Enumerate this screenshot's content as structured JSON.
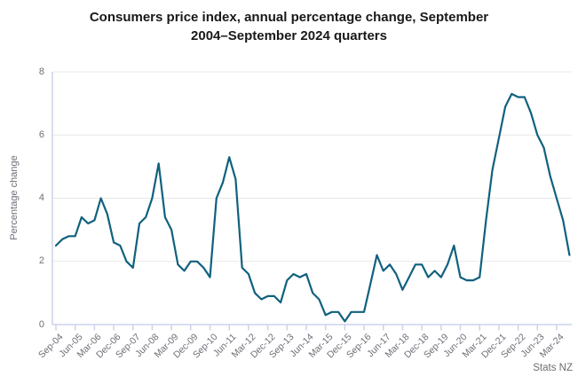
{
  "header": {
    "title_line1": "Consumers price index, annual percentage change, September",
    "title_line2": "2004–September 2024 quarters"
  },
  "chart_data": {
    "type": "line",
    "title": "Consumers price index, annual percentage change, September 2004–September 2024 quarters",
    "xlabel": "",
    "ylabel": "Percentage change",
    "source_note": "Stats NZ",
    "ylim": [
      0,
      8
    ],
    "yticks": [
      0,
      2,
      4,
      6,
      8
    ],
    "grid": "horizontal",
    "legend": "none",
    "x_tick_label_every": 3,
    "x_tick_labels": [
      "Sep-04",
      "Jun-05",
      "Mar-06",
      "Dec-06",
      "Sep-07",
      "Jun-08",
      "Mar-09",
      "Dec-09",
      "Sep-10",
      "Jun-11",
      "Mar-12",
      "Dec-12",
      "Sep-13",
      "Jun-14",
      "Mar-15",
      "Dec-15",
      "Sep-16",
      "Jun-17",
      "Mar-18",
      "Dec-18",
      "Sep-19",
      "Jun-20",
      "Mar-21",
      "Dec-21",
      "Sep-22",
      "Jun-23",
      "Mar-24"
    ],
    "categories": [
      "Sep-04",
      "Dec-04",
      "Mar-05",
      "Jun-05",
      "Sep-05",
      "Dec-05",
      "Mar-06",
      "Jun-06",
      "Sep-06",
      "Dec-06",
      "Mar-07",
      "Jun-07",
      "Sep-07",
      "Dec-07",
      "Mar-08",
      "Jun-08",
      "Sep-08",
      "Dec-08",
      "Mar-09",
      "Jun-09",
      "Sep-09",
      "Dec-09",
      "Mar-10",
      "Jun-10",
      "Sep-10",
      "Dec-10",
      "Mar-11",
      "Jun-11",
      "Sep-11",
      "Dec-11",
      "Mar-12",
      "Jun-12",
      "Sep-12",
      "Dec-12",
      "Mar-13",
      "Jun-13",
      "Sep-13",
      "Dec-13",
      "Mar-14",
      "Jun-14",
      "Sep-14",
      "Dec-14",
      "Mar-15",
      "Jun-15",
      "Sep-15",
      "Dec-15",
      "Mar-16",
      "Jun-16",
      "Sep-16",
      "Dec-16",
      "Mar-17",
      "Jun-17",
      "Sep-17",
      "Dec-17",
      "Mar-18",
      "Jun-18",
      "Sep-18",
      "Dec-18",
      "Mar-19",
      "Jun-19",
      "Sep-19",
      "Dec-19",
      "Mar-20",
      "Jun-20",
      "Sep-20",
      "Dec-20",
      "Mar-21",
      "Jun-21",
      "Sep-21",
      "Dec-21",
      "Mar-22",
      "Jun-22",
      "Sep-22",
      "Dec-22",
      "Mar-23",
      "Jun-23",
      "Sep-23",
      "Dec-23",
      "Mar-24",
      "Jun-24",
      "Sep-24"
    ],
    "series": [
      {
        "name": "CPI annual percentage change",
        "values": [
          2.5,
          2.7,
          2.8,
          2.8,
          3.4,
          3.2,
          3.3,
          4.0,
          3.5,
          2.6,
          2.5,
          2.0,
          1.8,
          3.2,
          3.4,
          4.0,
          5.1,
          3.4,
          3.0,
          1.9,
          1.7,
          2.0,
          2.0,
          1.8,
          1.5,
          4.0,
          4.5,
          5.3,
          4.6,
          1.8,
          1.6,
          1.0,
          0.8,
          0.9,
          0.9,
          0.7,
          1.4,
          1.6,
          1.5,
          1.6,
          1.0,
          0.8,
          0.3,
          0.4,
          0.4,
          0.1,
          0.4,
          0.4,
          0.4,
          1.3,
          2.2,
          1.7,
          1.9,
          1.6,
          1.1,
          1.5,
          1.9,
          1.9,
          1.5,
          1.7,
          1.5,
          1.9,
          2.5,
          1.5,
          1.4,
          1.4,
          1.5,
          3.3,
          4.9,
          5.9,
          6.9,
          7.3,
          7.2,
          7.2,
          6.7,
          6.0,
          5.6,
          4.7,
          4.0,
          3.3,
          2.2
        ]
      }
    ],
    "colors": {
      "line": "#10617e",
      "axis": "#ccd3ea",
      "grid": "#e8e8e8",
      "tick_text": "#6e6e78",
      "title_text": "#191919"
    }
  }
}
